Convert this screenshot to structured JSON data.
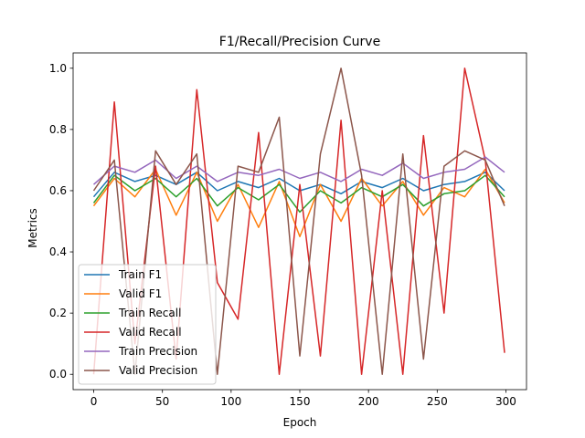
{
  "chart_data": {
    "type": "line",
    "title": "F1/Recall/Precision Curve",
    "xlabel": "Epoch",
    "ylabel": "Metrics",
    "xlim": [
      -15,
      315
    ],
    "ylim": [
      -0.05,
      1.05
    ],
    "xticks": [
      0,
      50,
      100,
      150,
      200,
      250,
      300
    ],
    "xtick_labels": [
      "0",
      "50",
      "100",
      "150",
      "200",
      "250",
      "300"
    ],
    "yticks": [
      0.0,
      0.2,
      0.4,
      0.6,
      0.8,
      1.0
    ],
    "ytick_labels": [
      "0.0",
      "0.2",
      "0.4",
      "0.6",
      "0.8",
      "1.0"
    ],
    "grid": false,
    "legend_position": "lower-left",
    "x": [
      0,
      15,
      30,
      45,
      60,
      75,
      90,
      105,
      120,
      135,
      150,
      165,
      180,
      195,
      210,
      225,
      240,
      255,
      270,
      285,
      299
    ],
    "series": [
      {
        "name": "Train F1",
        "color": "#1f77b4",
        "values": [
          0.58,
          0.66,
          0.63,
          0.65,
          0.62,
          0.66,
          0.6,
          0.63,
          0.61,
          0.64,
          0.6,
          0.62,
          0.59,
          0.63,
          0.61,
          0.64,
          0.6,
          0.62,
          0.63,
          0.66,
          0.6
        ]
      },
      {
        "name": "Valid F1",
        "color": "#ff7f0e",
        "values": [
          0.55,
          0.64,
          0.58,
          0.67,
          0.52,
          0.66,
          0.5,
          0.62,
          0.48,
          0.63,
          0.45,
          0.62,
          0.5,
          0.64,
          0.55,
          0.63,
          0.52,
          0.61,
          0.58,
          0.67,
          0.56
        ]
      },
      {
        "name": "Train Recall",
        "color": "#2ca02c",
        "values": [
          0.56,
          0.65,
          0.6,
          0.64,
          0.58,
          0.64,
          0.55,
          0.61,
          0.57,
          0.62,
          0.53,
          0.6,
          0.56,
          0.61,
          0.58,
          0.62,
          0.55,
          0.59,
          0.6,
          0.65,
          0.58
        ]
      },
      {
        "name": "Valid Recall",
        "color": "#d62728",
        "values": [
          0.0,
          0.89,
          0.1,
          0.68,
          0.05,
          0.93,
          0.3,
          0.18,
          0.79,
          0.0,
          0.62,
          0.06,
          0.83,
          0.0,
          0.6,
          0.0,
          0.78,
          0.2,
          1.0,
          0.7,
          0.07
        ]
      },
      {
        "name": "Train Precision",
        "color": "#9467bd",
        "values": [
          0.62,
          0.68,
          0.66,
          0.7,
          0.64,
          0.68,
          0.63,
          0.66,
          0.65,
          0.67,
          0.64,
          0.66,
          0.63,
          0.67,
          0.65,
          0.69,
          0.64,
          0.66,
          0.67,
          0.71,
          0.66
        ]
      },
      {
        "name": "Valid Precision",
        "color": "#8c564b",
        "values": [
          0.6,
          0.7,
          0.0,
          0.73,
          0.62,
          0.72,
          0.0,
          0.68,
          0.66,
          0.84,
          0.06,
          0.72,
          1.0,
          0.65,
          0.0,
          0.72,
          0.05,
          0.68,
          0.73,
          0.7,
          0.55
        ]
      }
    ]
  }
}
